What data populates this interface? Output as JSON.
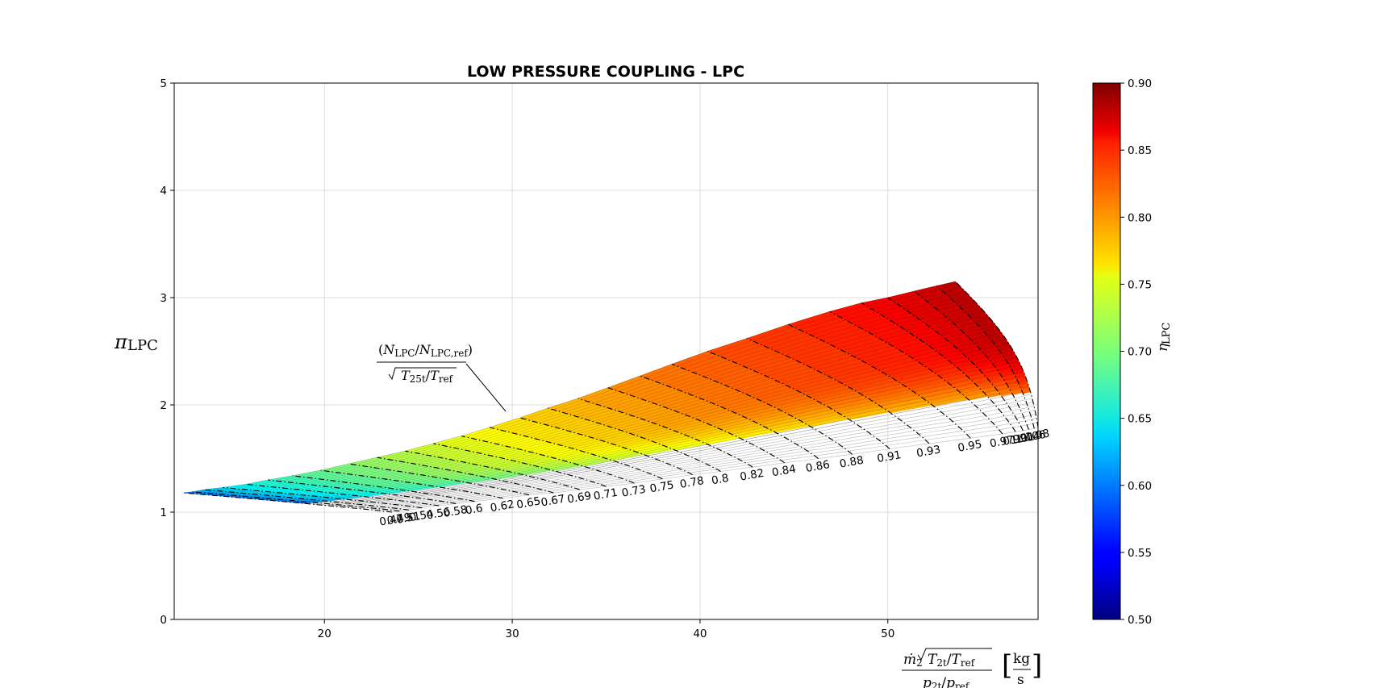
{
  "chart_data": {
    "type": "contour",
    "title": "LOW PRESSURE COUPLING - LPC",
    "xlabel": "ṁ2√(T2t/Tref)/(p2t/pref) [kg/s]",
    "ylabel": "πLPC",
    "xlim": [
      12,
      58
    ],
    "ylim": [
      0,
      5
    ],
    "xticks": [
      20,
      30,
      40,
      50
    ],
    "yticks": [
      0,
      1,
      2,
      3,
      4,
      5
    ],
    "grid": true,
    "colorbar": {
      "label": "ηLPC",
      "colormap": "jet",
      "range": [
        0.5,
        0.9
      ],
      "ticks": [
        "0.50",
        "0.55",
        "0.60",
        "0.65",
        "0.70",
        "0.75",
        "0.80",
        "0.85",
        "0.90"
      ]
    },
    "speed_line_label": "(NLPC/NLPC,ref)/√(T25t/Tref)",
    "speed_lines": [
      {
        "n": "0.47",
        "choke": [
          23.6,
          1.0
        ],
        "surge": [
          12.5,
          1.18
        ]
      },
      {
        "n": "0.49",
        "choke": [
          24.0,
          1.01
        ],
        "surge": [
          13.0,
          1.19
        ]
      },
      {
        "n": "0.51",
        "choke": [
          24.5,
          1.02
        ],
        "surge": [
          13.6,
          1.21
        ]
      },
      {
        "n": "0.54",
        "choke": [
          25.2,
          1.04
        ],
        "surge": [
          14.6,
          1.23
        ]
      },
      {
        "n": "0.56",
        "choke": [
          26.1,
          1.06
        ],
        "surge": [
          15.8,
          1.26
        ]
      },
      {
        "n": "0.58",
        "choke": [
          27.0,
          1.08
        ],
        "surge": [
          17.0,
          1.3
        ]
      },
      {
        "n": "0.6",
        "choke": [
          28.0,
          1.1
        ],
        "surge": [
          18.3,
          1.34
        ]
      },
      {
        "n": "0.62",
        "choke": [
          29.5,
          1.13
        ],
        "surge": [
          19.8,
          1.39
        ]
      },
      {
        "n": "0.65",
        "choke": [
          30.9,
          1.16
        ],
        "surge": [
          21.3,
          1.45
        ]
      },
      {
        "n": "0.67",
        "choke": [
          32.2,
          1.18
        ],
        "surge": [
          22.8,
          1.51
        ]
      },
      {
        "n": "0.69",
        "choke": [
          33.6,
          1.21
        ],
        "surge": [
          24.3,
          1.57
        ]
      },
      {
        "n": "0.71",
        "choke": [
          35.0,
          1.24
        ],
        "surge": [
          25.8,
          1.64
        ]
      },
      {
        "n": "0.73",
        "choke": [
          36.5,
          1.27
        ],
        "surge": [
          27.3,
          1.71
        ]
      },
      {
        "n": "0.75",
        "choke": [
          38.0,
          1.31
        ],
        "surge": [
          28.8,
          1.79
        ]
      },
      {
        "n": "0.78",
        "choke": [
          39.6,
          1.35
        ],
        "surge": [
          30.4,
          1.88
        ]
      },
      {
        "n": "0.8",
        "choke": [
          41.1,
          1.38
        ],
        "surge": [
          31.9,
          1.97
        ]
      },
      {
        "n": "0.82",
        "choke": [
          42.8,
          1.42
        ],
        "surge": [
          33.5,
          2.06
        ]
      },
      {
        "n": "0.84",
        "choke": [
          44.5,
          1.46
        ],
        "surge": [
          35.1,
          2.16
        ]
      },
      {
        "n": "0.86",
        "choke": [
          46.3,
          1.5
        ],
        "surge": [
          36.8,
          2.27
        ]
      },
      {
        "n": "0.88",
        "choke": [
          48.1,
          1.54
        ],
        "surge": [
          38.5,
          2.38
        ]
      },
      {
        "n": "0.91",
        "choke": [
          50.1,
          1.59
        ],
        "surge": [
          40.4,
          2.5
        ]
      },
      {
        "n": "0.93",
        "choke": [
          52.2,
          1.64
        ],
        "surge": [
          42.5,
          2.62
        ]
      },
      {
        "n": "0.95",
        "choke": [
          54.4,
          1.69
        ],
        "surge": [
          44.7,
          2.75
        ]
      },
      {
        "n": "0.97",
        "choke": [
          56.1,
          1.73
        ],
        "surge": [
          46.9,
          2.87
        ]
      },
      {
        "n": "0.99",
        "choke": [
          56.8,
          1.75
        ],
        "surge": [
          48.6,
          2.95
        ]
      },
      {
        "n": "1.01",
        "choke": [
          57.2,
          1.76
        ],
        "surge": [
          50.0,
          3.0
        ]
      },
      {
        "n": "1.04",
        "choke": [
          57.5,
          1.77
        ],
        "surge": [
          51.4,
          3.06
        ]
      },
      {
        "n": "1.06",
        "choke": [
          57.8,
          1.78
        ],
        "surge": [
          52.6,
          3.11
        ]
      },
      {
        "n": "1.08",
        "choke": [
          58.0,
          1.79
        ],
        "surge": [
          53.6,
          3.15
        ]
      }
    ],
    "efficiency_region_peak_approx": 0.88
  }
}
